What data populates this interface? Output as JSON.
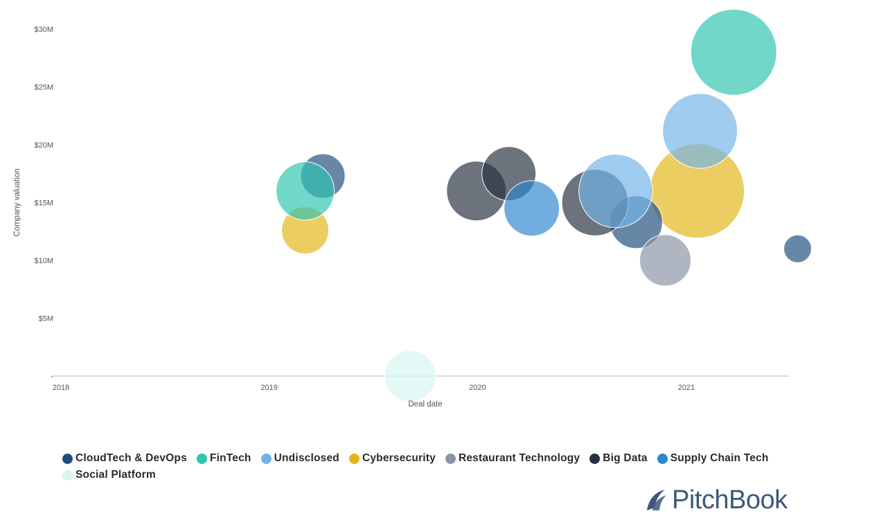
{
  "colors": {
    "CloudTech & DevOps": "#1f4e7d",
    "FinTech": "#2ec4b0",
    "Undisclosed": "#72b4e8",
    "Cybersecurity": "#e2b618",
    "Restaurant Technology": "#8a94a3",
    "Big Data": "#26303e",
    "Supply Chain Tech": "#2e86cf",
    "Social Platform": "#d9f5f1"
  },
  "chart_data": {
    "type": "scatter",
    "xlabel": "Deal date",
    "ylabel": "Company valuation",
    "x_ticks": [
      "2018",
      "2019",
      "2020",
      "2021"
    ],
    "y_ticks": [
      "-",
      "$5M",
      "$10M",
      "$15M",
      "$20M",
      "$25M",
      "$30M"
    ],
    "y_tick_values": [
      0,
      5,
      10,
      15,
      20,
      25,
      30
    ],
    "xlim": [
      "2018-01-01",
      "2021-07-01"
    ],
    "ylim": [
      0,
      30
    ],
    "grid": false,
    "legend_position": "bottom",
    "series": [
      {
        "name": "Cybersecurity",
        "points": [
          {
            "date": "2019-03-05",
            "valuation_m": 12.6,
            "size": 34
          },
          {
            "date": "2021-01-20",
            "valuation_m": 16.0,
            "size": 68
          }
        ]
      },
      {
        "name": "CloudTech & DevOps",
        "points": [
          {
            "date": "2019-04-05",
            "valuation_m": 17.3,
            "size": 32
          },
          {
            "date": "2020-10-05",
            "valuation_m": 13.3,
            "size": 38
          },
          {
            "date": "2021-07-15",
            "valuation_m": 11.0,
            "size": 20
          }
        ]
      },
      {
        "name": "FinTech",
        "points": [
          {
            "date": "2019-03-05",
            "valuation_m": 16.0,
            "size": 42
          },
          {
            "date": "2021-03-25",
            "valuation_m": 28.0,
            "size": 62
          }
        ]
      },
      {
        "name": "Social Platform",
        "points": [
          {
            "date": "2019-09-05",
            "valuation_m": 0.0,
            "size": 37
          }
        ]
      },
      {
        "name": "Big Data",
        "points": [
          {
            "date": "2019-12-30",
            "valuation_m": 16.0,
            "size": 43
          },
          {
            "date": "2020-02-25",
            "valuation_m": 17.5,
            "size": 39
          },
          {
            "date": "2020-07-25",
            "valuation_m": 15.0,
            "size": 48
          }
        ]
      },
      {
        "name": "Supply Chain Tech",
        "points": [
          {
            "date": "2020-04-05",
            "valuation_m": 14.5,
            "size": 40
          }
        ]
      },
      {
        "name": "Undisclosed",
        "points": [
          {
            "date": "2020-08-30",
            "valuation_m": 16.0,
            "size": 53
          },
          {
            "date": "2021-01-25",
            "valuation_m": 21.2,
            "size": 54
          }
        ]
      },
      {
        "name": "Restaurant Technology",
        "points": [
          {
            "date": "2020-11-25",
            "valuation_m": 10.0,
            "size": 37
          }
        ]
      }
    ]
  },
  "legend": [
    "CloudTech & DevOps",
    "FinTech",
    "Undisclosed",
    "Cybersecurity",
    "Restaurant Technology",
    "Big Data",
    "Supply Chain Tech",
    "Social Platform"
  ],
  "logo": {
    "text": "PitchBook"
  }
}
